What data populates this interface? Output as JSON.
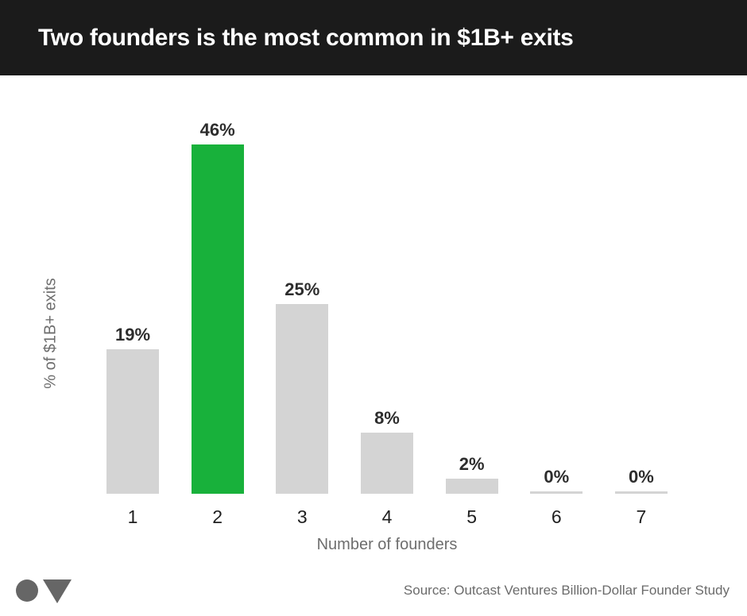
{
  "header": {
    "title": "Two founders is the most common in $1B+ exits"
  },
  "chart_data": {
    "type": "bar",
    "title": "Two founders is the most common in $1B+ exits",
    "categories": [
      "1",
      "2",
      "3",
      "4",
      "5",
      "6",
      "7"
    ],
    "values": [
      19,
      46,
      25,
      8,
      2,
      0,
      0
    ],
    "value_labels": [
      "19%",
      "46%",
      "25%",
      "8%",
      "2%",
      "0%",
      "0%"
    ],
    "highlight_index": 1,
    "xlabel": "Number of founders",
    "ylabel": "% of $1B+ exits",
    "ylim": [
      0,
      46
    ],
    "grid": false,
    "legend": false,
    "bar_colors": {
      "default": "#d4d4d4",
      "highlight": "#18b13b"
    }
  },
  "footer": {
    "source": "Source: Outcast Ventures Billion-Dollar Founder Study",
    "logo_color": "#666666"
  },
  "colors": {
    "header_bg": "#1b1b1b",
    "header_text": "#ffffff",
    "background": "#ffffff"
  }
}
